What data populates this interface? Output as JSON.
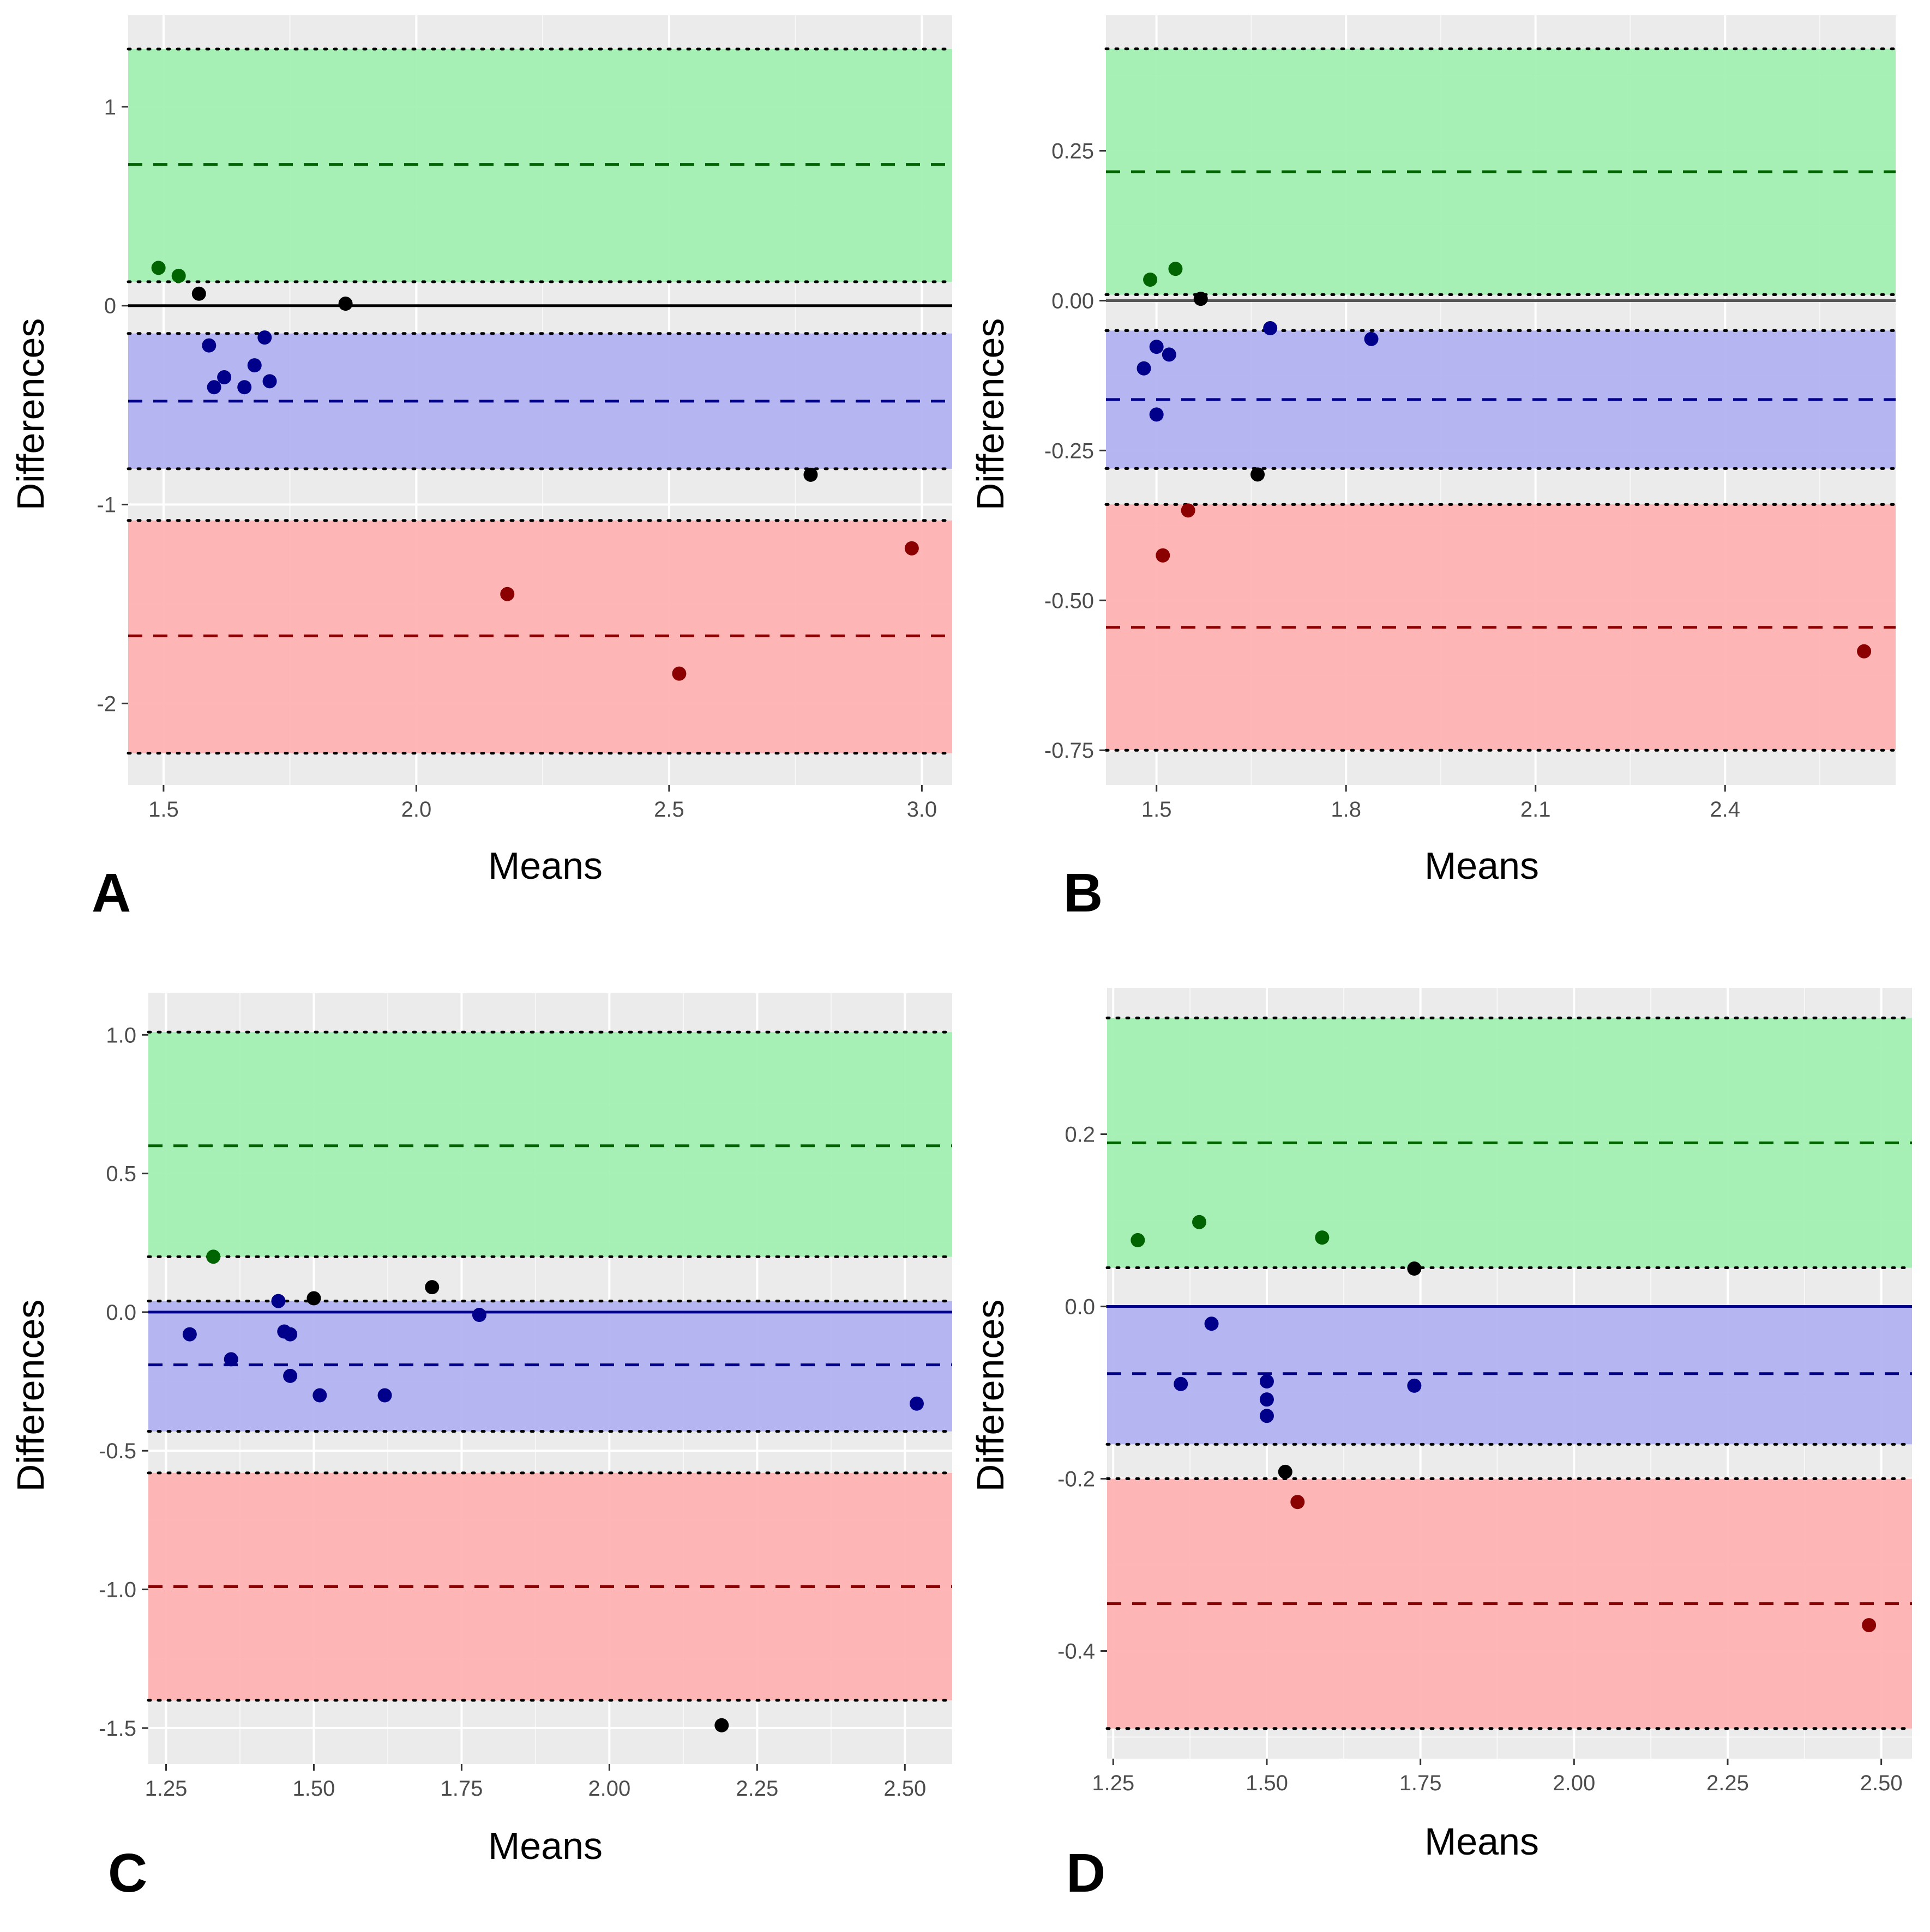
{
  "figure": {
    "colors": {
      "panel_bg": "#ebebeb",
      "grid_major": "#ffffff",
      "upper_band": "#a0f0b0",
      "middle_band": "#b0b0f2",
      "lower_band": "#ffb0b0",
      "upper_line": "#006400",
      "middle_line": "#00008b",
      "lower_line": "#8b0000",
      "bound_line": "#000000",
      "tick_text": "#4d4d4d"
    }
  },
  "chart_data": [
    {
      "panel": "A",
      "type": "scatter",
      "xlabel": "Means",
      "ylabel": "Differences",
      "xlim": [
        1.43,
        3.06
      ],
      "ylim": [
        -2.41,
        1.46
      ],
      "xticks": [
        1.5,
        2.0,
        2.5,
        3.0
      ],
      "xtick_labels": [
        "1.5",
        "2.0",
        "2.5",
        "3.0"
      ],
      "yticks": [
        -2,
        -1,
        0,
        1
      ],
      "ytick_labels": [
        "-2",
        "-1",
        "0",
        "1"
      ],
      "zero_line": {
        "y": 0,
        "color": "#000000"
      },
      "bands": [
        {
          "name": "upper",
          "lower": 0.12,
          "upper": 1.29,
          "mean": 0.71
        },
        {
          "name": "middle",
          "lower": -0.82,
          "upper": -0.14,
          "mean": -0.48
        },
        {
          "name": "lower",
          "lower": -2.25,
          "upper": -1.08,
          "mean": -1.66
        }
      ],
      "points": [
        {
          "x": 1.49,
          "y": 0.19,
          "group": "upper"
        },
        {
          "x": 1.53,
          "y": 0.15,
          "group": "upper"
        },
        {
          "x": 1.57,
          "y": 0.06,
          "group": "none"
        },
        {
          "x": 1.86,
          "y": 0.01,
          "group": "none"
        },
        {
          "x": 1.59,
          "y": -0.2,
          "group": "middle"
        },
        {
          "x": 1.6,
          "y": -0.41,
          "group": "middle"
        },
        {
          "x": 1.62,
          "y": -0.36,
          "group": "middle"
        },
        {
          "x": 1.66,
          "y": -0.41,
          "group": "middle"
        },
        {
          "x": 1.68,
          "y": -0.3,
          "group": "middle"
        },
        {
          "x": 1.7,
          "y": -0.16,
          "group": "middle"
        },
        {
          "x": 1.71,
          "y": -0.38,
          "group": "middle"
        },
        {
          "x": 2.78,
          "y": -0.85,
          "group": "none"
        },
        {
          "x": 2.18,
          "y": -1.45,
          "group": "lower"
        },
        {
          "x": 2.52,
          "y": -1.85,
          "group": "lower"
        },
        {
          "x": 2.98,
          "y": -1.22,
          "group": "lower"
        }
      ]
    },
    {
      "panel": "B",
      "type": "scatter",
      "xlabel": "Means",
      "ylabel": "Differences",
      "xlim": [
        1.42,
        2.67
      ],
      "ylim": [
        -0.808,
        0.476
      ],
      "xticks": [
        1.5,
        1.8,
        2.1,
        2.4
      ],
      "xtick_labels": [
        "1.5",
        "1.8",
        "2.1",
        "2.4"
      ],
      "yticks": [
        -0.75,
        -0.5,
        -0.25,
        0.0,
        0.25
      ],
      "ytick_labels": [
        "-0.75",
        "-0.50",
        "-0.25",
        "0.00",
        "0.25"
      ],
      "zero_line": {
        "y": 0,
        "color": "#555555"
      },
      "bands": [
        {
          "name": "upper",
          "lower": 0.01,
          "upper": 0.42,
          "mean": 0.215
        },
        {
          "name": "middle",
          "lower": -0.28,
          "upper": -0.05,
          "mean": -0.165
        },
        {
          "name": "lower",
          "lower": -0.75,
          "upper": -0.34,
          "mean": -0.545
        }
      ],
      "points": [
        {
          "x": 1.49,
          "y": 0.035,
          "group": "upper"
        },
        {
          "x": 1.53,
          "y": 0.053,
          "group": "upper"
        },
        {
          "x": 1.57,
          "y": 0.003,
          "group": "none"
        },
        {
          "x": 1.48,
          "y": -0.113,
          "group": "middle"
        },
        {
          "x": 1.5,
          "y": -0.077,
          "group": "middle"
        },
        {
          "x": 1.5,
          "y": -0.19,
          "group": "middle"
        },
        {
          "x": 1.52,
          "y": -0.09,
          "group": "middle"
        },
        {
          "x": 1.68,
          "y": -0.046,
          "group": "middle"
        },
        {
          "x": 1.84,
          "y": -0.064,
          "group": "middle"
        },
        {
          "x": 1.66,
          "y": -0.29,
          "group": "none"
        },
        {
          "x": 1.55,
          "y": -0.35,
          "group": "lower"
        },
        {
          "x": 1.51,
          "y": -0.425,
          "group": "lower"
        },
        {
          "x": 2.62,
          "y": -0.585,
          "group": "lower"
        }
      ]
    },
    {
      "panel": "C",
      "type": "scatter",
      "xlabel": "Means",
      "ylabel": "Differences",
      "xlim": [
        1.22,
        2.58
      ],
      "ylim": [
        -1.63,
        1.15
      ],
      "xticks": [
        1.25,
        1.5,
        1.75,
        2.0,
        2.25,
        2.5
      ],
      "xtick_labels": [
        "1.25",
        "1.50",
        "1.75",
        "2.00",
        "2.25",
        "2.50"
      ],
      "yticks": [
        -1.5,
        -1.0,
        -0.5,
        0.0,
        0.5,
        1.0
      ],
      "ytick_labels": [
        "-1.5",
        "-1.0",
        "-0.5",
        "0.0",
        "0.5",
        "1.0"
      ],
      "zero_line": {
        "y": 0,
        "color": "#00008b"
      },
      "bands": [
        {
          "name": "upper",
          "lower": 0.2,
          "upper": 1.01,
          "mean": 0.6
        },
        {
          "name": "middle",
          "lower": -0.43,
          "upper": 0.04,
          "mean": -0.19
        },
        {
          "name": "lower",
          "lower": -1.4,
          "upper": -0.58,
          "mean": -0.99
        }
      ],
      "points": [
        {
          "x": 1.33,
          "y": 0.2,
          "group": "upper"
        },
        {
          "x": 1.29,
          "y": -0.08,
          "group": "middle"
        },
        {
          "x": 1.36,
          "y": -0.17,
          "group": "middle"
        },
        {
          "x": 1.44,
          "y": 0.04,
          "group": "middle"
        },
        {
          "x": 1.45,
          "y": -0.07,
          "group": "middle"
        },
        {
          "x": 1.46,
          "y": -0.08,
          "group": "middle"
        },
        {
          "x": 1.46,
          "y": -0.23,
          "group": "middle"
        },
        {
          "x": 1.5,
          "y": 0.05,
          "group": "none"
        },
        {
          "x": 1.51,
          "y": -0.3,
          "group": "middle"
        },
        {
          "x": 1.62,
          "y": -0.3,
          "group": "middle"
        },
        {
          "x": 1.7,
          "y": 0.09,
          "group": "none"
        },
        {
          "x": 1.78,
          "y": -0.01,
          "group": "middle"
        },
        {
          "x": 2.52,
          "y": -0.33,
          "group": "middle"
        },
        {
          "x": 2.19,
          "y": -1.49,
          "group": "none"
        }
      ]
    },
    {
      "panel": "D",
      "type": "scatter",
      "xlabel": "Means",
      "ylabel": "Differences",
      "xlim": [
        1.24,
        2.55
      ],
      "ylim": [
        -0.525,
        0.37
      ],
      "xticks": [
        1.25,
        1.5,
        1.75,
        2.0,
        2.25,
        2.5
      ],
      "xtick_labels": [
        "1.25",
        "1.50",
        "1.75",
        "2.00",
        "2.25",
        "2.50"
      ],
      "yticks": [
        -0.4,
        -0.2,
        0.0,
        0.2
      ],
      "ytick_labels": [
        "-0.4",
        "-0.2",
        "0.0",
        "0.2"
      ],
      "zero_line": {
        "y": 0,
        "color": "#00008b"
      },
      "bands": [
        {
          "name": "upper",
          "lower": 0.045,
          "upper": 0.335,
          "mean": 0.19
        },
        {
          "name": "middle",
          "lower": -0.16,
          "upper": 0.0,
          "mean": -0.078
        },
        {
          "name": "lower",
          "lower": -0.49,
          "upper": -0.2,
          "mean": -0.345
        }
      ],
      "points": [
        {
          "x": 1.29,
          "y": 0.077,
          "group": "upper"
        },
        {
          "x": 1.39,
          "y": 0.098,
          "group": "upper"
        },
        {
          "x": 1.59,
          "y": 0.08,
          "group": "upper"
        },
        {
          "x": 1.74,
          "y": 0.044,
          "group": "none"
        },
        {
          "x": 1.41,
          "y": -0.02,
          "group": "middle"
        },
        {
          "x": 1.36,
          "y": -0.09,
          "group": "middle"
        },
        {
          "x": 1.5,
          "y": -0.087,
          "group": "middle"
        },
        {
          "x": 1.5,
          "y": -0.108,
          "group": "middle"
        },
        {
          "x": 1.5,
          "y": -0.127,
          "group": "middle"
        },
        {
          "x": 1.74,
          "y": -0.092,
          "group": "middle"
        },
        {
          "x": 1.53,
          "y": -0.192,
          "group": "none"
        },
        {
          "x": 1.55,
          "y": -0.227,
          "group": "lower"
        },
        {
          "x": 2.48,
          "y": -0.37,
          "group": "lower"
        }
      ]
    }
  ]
}
